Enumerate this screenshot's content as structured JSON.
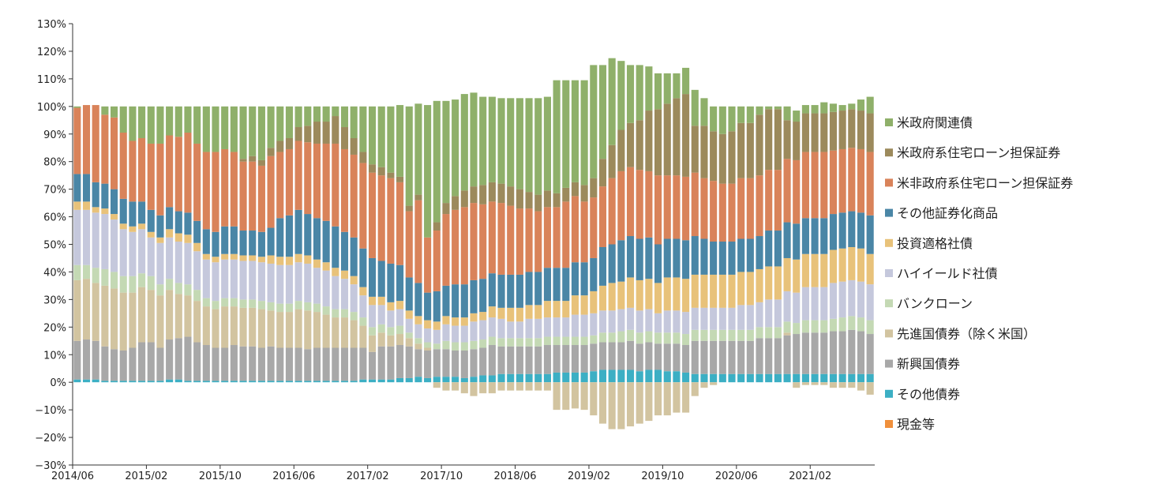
{
  "chart_data": {
    "type": "stacked-bar",
    "categories": [
      "2014/06",
      null,
      null,
      null,
      null,
      null,
      null,
      null,
      "2015/02",
      null,
      null,
      null,
      null,
      null,
      null,
      null,
      "2015/10",
      null,
      null,
      null,
      null,
      null,
      null,
      null,
      "2016/06",
      null,
      null,
      null,
      null,
      null,
      null,
      null,
      "2017/02",
      null,
      null,
      null,
      null,
      null,
      null,
      null,
      "2017/10",
      null,
      null,
      null,
      null,
      null,
      null,
      null,
      "2018/06",
      null,
      null,
      null,
      null,
      null,
      null,
      null,
      "2019/02",
      null,
      null,
      null,
      null,
      null,
      null,
      null,
      "2019/10",
      null,
      null,
      null,
      null,
      null,
      null,
      null,
      "2020/06",
      null,
      null,
      null,
      null,
      null,
      null,
      null,
      "2021/02",
      null,
      null,
      null,
      null,
      null,
      null
    ],
    "ylim": [
      -30,
      130
    ],
    "yticks": [
      {
        "value": -30,
        "label": "−30%"
      },
      {
        "value": -20,
        "label": "−20%"
      },
      {
        "value": -10,
        "label": "−10%"
      },
      {
        "value": 0,
        "label": "0%"
      },
      {
        "value": 10,
        "label": "10%"
      },
      {
        "value": 20,
        "label": "20%"
      },
      {
        "value": 30,
        "label": "30%"
      },
      {
        "value": 40,
        "label": "40%"
      },
      {
        "value": 50,
        "label": "50%"
      },
      {
        "value": 60,
        "label": "60%"
      },
      {
        "value": 70,
        "label": "70%"
      },
      {
        "value": 80,
        "label": "80%"
      },
      {
        "value": 90,
        "label": "90%"
      },
      {
        "value": 100,
        "label": "100%"
      },
      {
        "value": 110,
        "label": "110%"
      },
      {
        "value": 120,
        "label": "120%"
      },
      {
        "value": 130,
        "label": "130%"
      }
    ],
    "legend": "right",
    "series": [
      {
        "name": "現金等",
        "color": "#f0903c",
        "values": [
          0,
          0,
          0,
          0,
          0,
          0,
          0,
          0,
          0,
          0,
          0,
          0,
          0,
          0,
          0,
          0,
          0,
          0,
          0,
          0,
          0,
          0,
          0,
          0,
          0,
          0,
          0,
          0,
          0,
          0,
          0,
          0,
          0,
          0,
          0,
          0,
          0,
          0,
          0,
          0,
          0,
          0,
          0,
          0,
          0,
          0,
          0,
          0,
          0,
          0,
          0,
          0,
          0,
          0,
          0,
          0,
          0,
          0,
          0,
          0,
          0,
          0,
          0,
          0,
          0,
          0,
          0,
          0,
          0,
          0,
          0,
          0,
          0,
          0,
          0,
          0,
          0,
          0,
          0,
          0,
          0,
          0,
          0,
          0,
          0,
          0,
          0
        ]
      },
      {
        "name": "その他債券",
        "color": "#3cafc4",
        "values": [
          1,
          1,
          1,
          0.5,
          0.5,
          0.5,
          0.5,
          0.5,
          0.5,
          0.5,
          1,
          1,
          0.5,
          0.5,
          0.5,
          0.5,
          0.5,
          0.5,
          0.5,
          0.5,
          0.5,
          0.5,
          0.5,
          0.5,
          0.5,
          0.5,
          0.5,
          0.5,
          0.5,
          0.5,
          0.5,
          1,
          1,
          1,
          1,
          1.5,
          1.5,
          2,
          1.5,
          2,
          2,
          2,
          1.5,
          2,
          2.5,
          2.5,
          3,
          3,
          3,
          3,
          3,
          3,
          3.5,
          3.5,
          3.5,
          3.5,
          4,
          4.5,
          4.5,
          4.5,
          4.5,
          4,
          4.5,
          4.5,
          4,
          4,
          3.5,
          3,
          3,
          3,
          3,
          3,
          3,
          3,
          3,
          3,
          3,
          3,
          3,
          3,
          3,
          3,
          3,
          3,
          3,
          3,
          3
        ]
      },
      {
        "name": "新興国債券",
        "color": "#a8a8a8",
        "values": [
          14,
          14.5,
          14,
          12.5,
          11.5,
          11,
          12,
          14,
          14,
          12,
          14.5,
          15,
          16,
          14,
          13,
          12,
          12,
          13,
          12.5,
          12.5,
          12,
          12.5,
          12,
          12,
          12,
          11.5,
          12,
          12,
          12,
          12,
          12,
          11.5,
          10,
          12,
          12,
          12,
          11.5,
          10,
          10,
          10,
          10,
          9.5,
          10,
          10,
          10,
          11,
          10,
          10,
          10,
          10,
          10,
          10.5,
          10,
          10,
          10,
          10,
          10,
          10,
          10,
          10,
          10.5,
          10,
          10,
          9.5,
          10,
          10,
          10,
          12,
          12,
          12,
          12,
          12,
          12,
          12,
          13,
          13,
          13,
          14,
          14.5,
          15,
          15,
          15,
          15.5,
          15.5,
          16,
          15.5,
          14.5
        ]
      },
      {
        "name": "先進国債券（除く米国）",
        "color": "#d2c4a0",
        "values": [
          22,
          22,
          21,
          22,
          22,
          21,
          20,
          20,
          19,
          19,
          18,
          16,
          15,
          15,
          14,
          14,
          15,
          14,
          14,
          14,
          14,
          13,
          13,
          13,
          14,
          14,
          13,
          12,
          11,
          11,
          10,
          8,
          6,
          5,
          4,
          4,
          3,
          2,
          1,
          -2,
          -3,
          -3,
          -4,
          -5,
          -4,
          -4,
          -3,
          -3,
          -3,
          -3,
          -3,
          -3,
          -10,
          -10,
          -9.5,
          -10,
          -12,
          -15,
          -17,
          -17,
          -16,
          -15,
          -14,
          -12,
          -12,
          -11,
          -11,
          -5,
          -2,
          -1,
          0,
          0,
          0,
          0,
          0,
          0,
          0,
          1,
          -2,
          -1,
          -1,
          -1,
          -2,
          -2,
          -2,
          -3,
          -4.5
        ]
      },
      {
        "name": "バンクローン",
        "color": "#c4d9b4",
        "values": [
          5.5,
          5,
          5.5,
          6,
          6,
          6,
          6,
          5,
          5,
          4,
          4,
          4,
          4,
          4,
          3,
          3,
          3,
          3,
          3,
          3,
          3,
          3,
          3,
          3,
          3,
          3,
          3,
          3,
          3,
          3,
          3,
          3,
          3,
          3,
          3,
          3,
          2,
          2,
          2,
          2,
          3,
          3,
          3,
          3,
          3,
          3,
          3,
          3,
          3,
          3,
          3,
          3,
          3,
          3,
          3,
          3,
          3,
          3.5,
          3.5,
          4,
          4,
          4,
          4,
          4,
          4,
          4,
          4,
          4,
          4,
          4,
          4,
          4,
          4,
          4,
          4,
          4,
          4,
          4,
          4,
          4.5,
          4.5,
          4.5,
          4.5,
          5,
          5,
          5,
          5
        ]
      },
      {
        "name": "ハイイールド社債",
        "color": "#c5c8dc",
        "values": [
          20,
          20,
          20,
          20,
          19,
          17,
          16,
          16,
          14,
          15,
          15,
          15,
          15,
          14,
          14,
          14,
          14,
          14,
          14,
          14,
          14,
          14,
          14,
          14,
          14,
          14,
          13,
          13,
          12,
          11,
          10,
          8,
          8,
          7,
          6,
          6,
          5,
          5,
          5,
          5,
          6,
          6,
          6,
          7,
          7,
          7,
          7,
          6,
          6,
          7,
          7,
          7,
          7,
          7,
          8,
          8,
          8,
          8,
          8,
          8,
          8,
          8,
          8,
          7,
          8,
          8,
          8,
          8,
          8,
          8,
          8,
          8,
          9,
          9,
          9,
          10,
          10,
          11,
          11,
          12,
          12,
          12,
          13,
          13,
          13,
          13,
          13
        ]
      },
      {
        "name": "投資適格社債",
        "color": "#e8c27a",
        "values": [
          3,
          3,
          2,
          2,
          2,
          2,
          2,
          2,
          2,
          2,
          3,
          3,
          3,
          3,
          2,
          2,
          2,
          2,
          2,
          2,
          2,
          3,
          3,
          3,
          3,
          3,
          3,
          3,
          3,
          3,
          3,
          3,
          3,
          3,
          3,
          3,
          3,
          3,
          3,
          3,
          3,
          3,
          3,
          3,
          3,
          4,
          4,
          5,
          5,
          5,
          5,
          6,
          6,
          6,
          7,
          7,
          8,
          9,
          10,
          10,
          11,
          11,
          11,
          11,
          12,
          12,
          12,
          12,
          12,
          12,
          12,
          12,
          12,
          12,
          12,
          12,
          12,
          12,
          12,
          12,
          12,
          12,
          12,
          12,
          12,
          12,
          11
        ]
      },
      {
        "name": "その他証券化商品",
        "color": "#4a86a6",
        "values": [
          10,
          10,
          9,
          9,
          9,
          9,
          9,
          8,
          8,
          8,
          8,
          8,
          8,
          8,
          9,
          9,
          10,
          10,
          9,
          9,
          9,
          10,
          14,
          15,
          16,
          15,
          15,
          15,
          15,
          14,
          14,
          14,
          14,
          13,
          14,
          13,
          12,
          12,
          10,
          11,
          11,
          12,
          12,
          12,
          12,
          12,
          12,
          12,
          12,
          12,
          12,
          12,
          12,
          12,
          12,
          12,
          12,
          14,
          14,
          15,
          15,
          15,
          15,
          14,
          14,
          14,
          14,
          14,
          13,
          12,
          12,
          12,
          12,
          12,
          12,
          13,
          13,
          13,
          13,
          13,
          13,
          13,
          13,
          13,
          13,
          13,
          14
        ]
      },
      {
        "name": "米非政府系住宅ローン担保証券",
        "color": "#d9835a",
        "values": [
          24,
          25,
          28,
          25,
          26,
          24,
          22,
          23,
          24,
          26,
          26,
          27,
          29,
          28,
          28,
          29,
          28,
          27,
          25,
          25,
          24,
          26,
          24,
          24,
          25,
          26,
          27,
          28,
          30,
          30,
          30,
          31,
          31,
          31,
          31,
          30,
          24,
          30,
          20,
          22,
          26,
          27,
          28,
          28,
          27,
          26,
          26,
          25,
          24,
          23,
          22,
          22,
          22,
          24,
          24,
          22,
          22,
          22,
          24,
          25,
          25,
          25,
          24,
          25,
          23,
          23,
          23,
          23,
          22,
          22,
          21,
          21,
          22,
          22,
          22,
          22,
          22,
          23,
          23,
          24,
          24,
          24,
          23,
          23,
          23,
          23,
          23
        ]
      },
      {
        "name": "米政府系住宅ローン担保証券",
        "color": "#9c8a5c",
        "values": [
          0,
          0,
          0,
          0,
          0,
          0,
          0,
          0,
          0,
          0,
          0,
          0,
          0,
          0,
          0,
          0,
          0,
          0,
          1,
          2,
          2,
          3,
          4,
          4,
          5,
          6,
          8,
          8,
          10,
          8,
          6,
          4,
          3,
          3,
          2,
          2,
          2,
          2,
          0,
          3,
          4,
          5,
          6,
          6,
          7,
          7,
          7,
          7,
          7,
          6,
          6,
          6,
          5,
          5,
          5,
          6,
          7,
          10,
          12,
          15,
          16,
          18,
          22,
          24,
          26,
          28,
          30,
          17,
          19,
          18,
          18,
          19,
          20,
          20,
          22,
          22,
          22,
          14,
          14,
          14,
          14,
          14,
          14,
          14,
          14,
          14,
          14
        ]
      },
      {
        "name": "米政府関連債",
        "color": "#8fb06a",
        "values": [
          0.5,
          0,
          0,
          3,
          4,
          9.5,
          12.5,
          11.5,
          13.5,
          13.5,
          10.5,
          11,
          9.5,
          13.5,
          16.5,
          16.5,
          15.5,
          16.5,
          19,
          18,
          19.5,
          15,
          12.5,
          11.5,
          7.5,
          7,
          5.5,
          5.5,
          3.5,
          7.5,
          11.5,
          16.5,
          21,
          22,
          24,
          26,
          36,
          33,
          48,
          44,
          37,
          35,
          35,
          34,
          32,
          31,
          31,
          32,
          33,
          34,
          35,
          34,
          41,
          39,
          37,
          38,
          41,
          34,
          31.5,
          25,
          21,
          20,
          16,
          13,
          11,
          9,
          9.5,
          13,
          10,
          9,
          10,
          9,
          6,
          6,
          3,
          1,
          1,
          5,
          4,
          3,
          3,
          4,
          3,
          2,
          2,
          4,
          6
        ]
      }
    ]
  }
}
